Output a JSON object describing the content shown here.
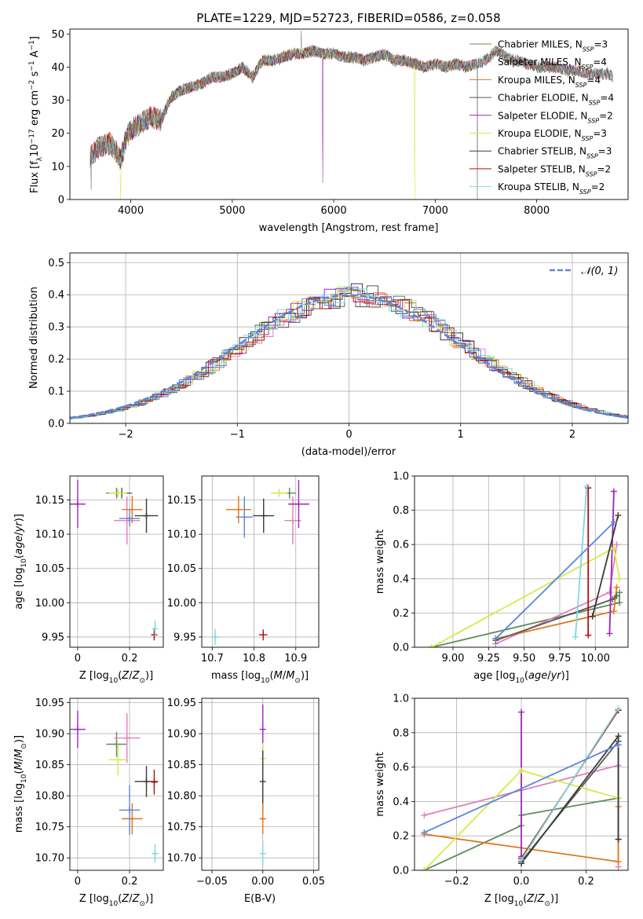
{
  "colors": {
    "Chabrier MILES": "#5f8c5f",
    "Salpeter MILES": "#e27fbf",
    "Kroupa MILES": "#e0761a",
    "Chabrier ELODIE": "#5a5a5a",
    "Salpeter ELODIE": "#9d26b8",
    "Kroupa ELODIE": "#d4ea4a",
    "Chabrier STELIB": "#3a3a3a",
    "Salpeter STELIB": "#b01010",
    "Kroupa STELIB": "#7fd9e0",
    "blue": "#5b86d9"
  },
  "chart_data": [
    {
      "id": "spectrum",
      "type": "line",
      "title": "PLATE=1229, MJD=52723, FIBERID=0586, z=0.058",
      "xlabel": "wavelength [Angstrom, rest frame]",
      "ylabel_parts": [
        "Flux [f",
        "λ",
        "10",
        "−17",
        " erg cm",
        "−2",
        " s",
        "−1",
        " A",
        "−1",
        "]"
      ],
      "xlim": [
        3400,
        8900
      ],
      "ylim": [
        0,
        51.5
      ],
      "xticks": [
        4000,
        5000,
        6000,
        7000,
        8000
      ],
      "yticks": [
        0,
        10,
        20,
        30,
        40,
        50
      ],
      "continuum_x": [
        3600,
        3700,
        3800,
        3900,
        3950,
        4000,
        4100,
        4200,
        4300,
        4400,
        4500,
        4600,
        4700,
        4800,
        4900,
        5000,
        5100,
        5200,
        5300,
        5400,
        5500,
        5600,
        5700,
        5800,
        5900,
        6000,
        6100,
        6200,
        6300,
        6400,
        6500,
        6600,
        6700,
        6800,
        6900,
        7000,
        7100,
        7200,
        7300,
        7400,
        7500,
        7600,
        7700,
        7800,
        7900,
        8000,
        8100,
        8200,
        8300,
        8400,
        8500,
        8600,
        8700,
        8750
      ],
      "continuum_y": [
        13,
        16,
        17,
        12,
        18,
        21,
        23,
        25,
        24,
        31,
        33,
        34,
        35,
        37,
        37,
        38,
        40,
        37,
        42,
        42,
        43,
        44,
        44,
        45,
        44,
        44,
        43,
        43,
        42,
        43,
        44,
        42,
        42,
        41,
        40,
        41,
        40,
        41,
        40,
        41,
        42,
        45,
        43,
        42,
        41,
        40,
        40,
        40,
        39,
        39,
        38,
        38,
        38,
        37
      ],
      "models": [
        {
          "name": "Chabrier MILES",
          "nssp": "3"
        },
        {
          "name": "Salpeter MILES",
          "nssp": "4"
        },
        {
          "name": "Kroupa MILES",
          "nssp": "4"
        },
        {
          "name": "Chabrier ELODIE",
          "nssp": "4"
        },
        {
          "name": "Salpeter ELODIE",
          "nssp": "2"
        },
        {
          "name": "Kroupa ELODIE",
          "nssp": "3"
        },
        {
          "name": "Chabrier STELIB",
          "nssp": "3"
        },
        {
          "name": "Salpeter STELIB",
          "nssp": "2"
        },
        {
          "name": "Kroupa STELIB",
          "nssp": "2"
        }
      ],
      "legend_position": "upper right"
    },
    {
      "id": "residuals",
      "type": "line",
      "xlabel": "(data-model)/error",
      "ylabel": "Normed distribution",
      "xlim": [
        -2.5,
        2.5
      ],
      "ylim": [
        0,
        0.53
      ],
      "xticks": [
        -2,
        -1,
        0,
        1,
        2
      ],
      "yticks": [
        0.0,
        0.1,
        0.2,
        0.3,
        0.4,
        0.5
      ],
      "grid": true,
      "reference_label": "𝒩(0, 1)",
      "legend_position": "upper right"
    },
    {
      "id": "age_vs_Z",
      "type": "scatter",
      "xlabel": "Z [log10(Z/Z⊙)]",
      "ylabel": "age  [log10(age/yr)]",
      "xlim": [
        -0.03,
        0.33
      ],
      "ylim": [
        9.935,
        10.185
      ],
      "xticks": [
        0.0,
        0.2
      ],
      "yticks": [
        9.95,
        10.0,
        10.05,
        10.1,
        10.15
      ],
      "grid": true,
      "points": [
        {
          "model": "Chabrier MILES",
          "x": 0.15,
          "y": 10.16,
          "xerr": 0.04,
          "yerr": 0.008
        },
        {
          "model": "Salpeter MILES",
          "x": 0.19,
          "y": 10.12,
          "xerr": 0.05,
          "yerr": 0.035
        },
        {
          "model": "Kroupa MILES",
          "x": 0.21,
          "y": 10.136,
          "xerr": 0.04,
          "yerr": 0.02
        },
        {
          "model": "Chabrier ELODIE",
          "x": 0.17,
          "y": 10.16,
          "xerr": 0.04,
          "yerr": 0.008
        },
        {
          "model": "Salpeter ELODIE",
          "x": 0.0,
          "y": 10.144,
          "xerr": 0.03,
          "yerr": 0.035
        },
        {
          "model": "Kroupa ELODIE",
          "x": 0.155,
          "y": 10.16,
          "xerr": 0.035,
          "yerr": 0.006
        },
        {
          "model": "Chabrier STELIB",
          "x": 0.265,
          "y": 10.127,
          "xerr": 0.045,
          "yerr": 0.025
        },
        {
          "model": "Salpeter STELIB",
          "x": 0.295,
          "y": 9.953,
          "xerr": 0.01,
          "yerr": 0.008
        },
        {
          "model": "Kroupa STELIB",
          "x": 0.298,
          "y": 9.962,
          "xerr": 0.005,
          "yerr": 0.012
        },
        {
          "model": "blue",
          "x": 0.2,
          "y": 10.123,
          "xerr": 0.04,
          "yerr": 0.012
        }
      ]
    },
    {
      "id": "age_vs_mass",
      "type": "scatter",
      "xlabel": "mass [log10(M/M⊙)]",
      "ylabel": "",
      "xlim": [
        10.675,
        10.955
      ],
      "ylim": [
        9.935,
        10.185
      ],
      "xticks": [
        10.7,
        10.8,
        10.9
      ],
      "yticks": [
        9.95,
        10.0,
        10.05,
        10.1,
        10.15
      ],
      "grid": true,
      "points": [
        {
          "model": "Chabrier MILES",
          "x": 10.885,
          "y": 10.16,
          "xerr": 0.015,
          "yerr": 0.008
        },
        {
          "model": "Salpeter MILES",
          "x": 10.893,
          "y": 10.12,
          "xerr": 0.02,
          "yerr": 0.035
        },
        {
          "model": "Kroupa MILES",
          "x": 10.763,
          "y": 10.136,
          "xerr": 0.03,
          "yerr": 0.02
        },
        {
          "model": "Salpeter ELODIE",
          "x": 10.907,
          "y": 10.144,
          "xerr": 0.025,
          "yerr": 0.035
        },
        {
          "model": "Kroupa ELODIE",
          "x": 10.86,
          "y": 10.16,
          "xerr": 0.02,
          "yerr": 0.006
        },
        {
          "model": "Chabrier STELIB",
          "x": 10.823,
          "y": 10.127,
          "xerr": 0.025,
          "yerr": 0.025
        },
        {
          "model": "Salpeter STELIB",
          "x": 10.822,
          "y": 9.953,
          "xerr": 0.01,
          "yerr": 0.008
        },
        {
          "model": "Kroupa STELIB",
          "x": 10.707,
          "y": 9.95,
          "xerr": 0.008,
          "yerr": 0.012
        },
        {
          "model": "blue",
          "x": 10.777,
          "y": 10.125,
          "xerr": 0.02,
          "yerr": 0.03
        }
      ]
    },
    {
      "id": "weights_vs_age",
      "type": "line",
      "xlabel": "age  [log10(age/yr)]",
      "ylabel": "mass weight",
      "xlim": [
        8.73,
        10.23
      ],
      "ylim": [
        0,
        1
      ],
      "xticks": [
        9.0,
        9.25,
        9.5,
        9.75,
        10.0
      ],
      "xticklabels": [
        "9.00",
        "9.25",
        "9.50",
        "9.75",
        "10.00"
      ],
      "yticks": [
        0.0,
        0.2,
        0.4,
        0.6,
        0.8,
        1.0
      ],
      "grid": true,
      "series": [
        {
          "model": "Chabrier MILES",
          "x": [
            8.85,
            10.17,
            10.17
          ],
          "y": [
            0.0,
            0.26,
            0.32
          ]
        },
        {
          "model": "Salpeter MILES",
          "x": [
            9.3,
            10.1,
            10.15
          ],
          "y": [
            0.02,
            0.32,
            0.6
          ]
        },
        {
          "model": "Kroupa MILES",
          "x": [
            9.3,
            10.13,
            10.15
          ],
          "y": [
            0.05,
            0.21,
            0.35
          ]
        },
        {
          "model": "Chabrier ELODIE",
          "x": [
            9.3,
            10.12,
            10.15
          ],
          "y": [
            0.04,
            0.28,
            0.3
          ]
        },
        {
          "model": "Salpeter ELODIE",
          "x": [
            10.1,
            10.13
          ],
          "y": [
            0.08,
            0.91
          ]
        },
        {
          "model": "Kroupa ELODIE",
          "x": [
            8.85,
            10.13,
            10.17
          ],
          "y": [
            0.0,
            0.58,
            0.4
          ]
        },
        {
          "model": "Chabrier STELIB",
          "x": [
            9.98,
            10.16
          ],
          "y": [
            0.18,
            0.77
          ]
        },
        {
          "model": "Salpeter STELIB",
          "x": [
            9.95,
            9.95
          ],
          "y": [
            0.07,
            0.93
          ]
        },
        {
          "model": "Kroupa STELIB",
          "x": [
            9.86,
            9.94
          ],
          "y": [
            0.06,
            0.94
          ]
        },
        {
          "model": "blue",
          "x": [
            9.3,
            10.13
          ],
          "y": [
            0.05,
            0.73
          ]
        }
      ]
    },
    {
      "id": "mass_vs_Z",
      "type": "scatter",
      "xlabel": "Z [log10(Z/Z⊙)]",
      "ylabel": "mass [log10(M/M⊙)]",
      "xlim": [
        -0.03,
        0.33
      ],
      "ylim": [
        10.68,
        10.957
      ],
      "xticks": [
        0.0,
        0.2
      ],
      "yticks": [
        10.7,
        10.75,
        10.8,
        10.85,
        10.9,
        10.95
      ],
      "grid": true,
      "points": [
        {
          "model": "Chabrier MILES",
          "x": 0.15,
          "y": 10.883,
          "xerr": 0.04,
          "yerr": 0.02
        },
        {
          "model": "Salpeter MILES",
          "x": 0.19,
          "y": 10.893,
          "xerr": 0.05,
          "yerr": 0.04
        },
        {
          "model": "Kroupa MILES",
          "x": 0.21,
          "y": 10.763,
          "xerr": 0.04,
          "yerr": 0.025
        },
        {
          "model": "Salpeter ELODIE",
          "x": 0.0,
          "y": 10.907,
          "xerr": 0.03,
          "yerr": 0.03
        },
        {
          "model": "Kroupa ELODIE",
          "x": 0.155,
          "y": 10.858,
          "xerr": 0.035,
          "yerr": 0.025
        },
        {
          "model": "Chabrier STELIB",
          "x": 0.265,
          "y": 10.823,
          "xerr": 0.045,
          "yerr": 0.025
        },
        {
          "model": "Salpeter STELIB",
          "x": 0.295,
          "y": 10.822,
          "xerr": 0.01,
          "yerr": 0.02
        },
        {
          "model": "Kroupa STELIB",
          "x": 0.298,
          "y": 10.707,
          "xerr": 0.01,
          "yerr": 0.015
        },
        {
          "model": "blue",
          "x": 0.2,
          "y": 10.777,
          "xerr": 0.04,
          "yerr": 0.04
        }
      ]
    },
    {
      "id": "mass_vs_EBV",
      "type": "scatter",
      "xlabel": "E(B-V)",
      "ylabel": "",
      "xlim": [
        -0.06,
        0.055
      ],
      "ylim": [
        10.68,
        10.957
      ],
      "xticks": [
        -0.05,
        0.0,
        0.05
      ],
      "xticklabels": [
        "−0.05",
        "0.00",
        "0.05"
      ],
      "yticks": [
        10.7,
        10.75,
        10.8,
        10.85,
        10.9,
        10.95
      ],
      "grid": true,
      "points": [
        {
          "model": "Salpeter ELODIE",
          "x": 0.0,
          "y": 10.907,
          "xerr": 0,
          "yerr": 0.04
        },
        {
          "model": "Kroupa ELODIE",
          "x": 0.0,
          "y": 10.86,
          "xerr": 0,
          "yerr": 0.025
        },
        {
          "model": "Chabrier STELIB",
          "x": 0.0,
          "y": 10.823,
          "xerr": 0,
          "yerr": 0.05
        },
        {
          "model": "Kroupa MILES",
          "x": 0.0,
          "y": 10.763,
          "xerr": 0,
          "yerr": 0.025
        },
        {
          "model": "Kroupa STELIB",
          "x": 0.0,
          "y": 10.707,
          "xerr": 0,
          "yerr": 0.02
        }
      ]
    },
    {
      "id": "weights_vs_Z",
      "type": "line",
      "xlabel": "Z [log10(Z/Z⊙)]",
      "ylabel": "mass weight",
      "xlim": [
        -0.33,
        0.33
      ],
      "ylim": [
        0,
        1
      ],
      "xticks": [
        -0.2,
        0.0,
        0.2
      ],
      "xticklabels": [
        "−0.2",
        "0.0",
        "0.2"
      ],
      "yticks": [
        0.0,
        0.2,
        0.4,
        0.6,
        0.8,
        1.0
      ],
      "grid": true,
      "series": [
        {
          "model": "Chabrier MILES",
          "x": [
            -0.3,
            0.0,
            0.0,
            0.3
          ],
          "y": [
            0.0,
            0.26,
            0.32,
            0.42
          ]
        },
        {
          "model": "Salpeter MILES",
          "x": [
            -0.3,
            0.3,
            0.3
          ],
          "y": [
            0.32,
            0.61,
            0.02
          ]
        },
        {
          "model": "Kroupa MILES",
          "x": [
            -0.3,
            0.3,
            0.3
          ],
          "y": [
            0.21,
            0.05,
            0.37
          ]
        },
        {
          "model": "Chabrier ELODIE",
          "x": [
            0.0,
            0.3,
            0.3
          ],
          "y": [
            0.05,
            0.75,
            0.18
          ]
        },
        {
          "model": "Salpeter ELODIE",
          "x": [
            0.0,
            0.0
          ],
          "y": [
            0.08,
            0.92
          ]
        },
        {
          "model": "Kroupa ELODIE",
          "x": [
            -0.3,
            0.0,
            0.3
          ],
          "y": [
            0.0,
            0.58,
            0.42
          ]
        },
        {
          "model": "Chabrier STELIB",
          "x": [
            0.0,
            0.3,
            0.3
          ],
          "y": [
            0.04,
            0.78,
            0.18
          ]
        },
        {
          "model": "Salpeter STELIB",
          "x": [
            0.0,
            0.3
          ],
          "y": [
            0.07,
            0.93
          ]
        },
        {
          "model": "Kroupa STELIB",
          "x": [
            0.0,
            0.3
          ],
          "y": [
            0.06,
            0.94
          ]
        },
        {
          "model": "blue",
          "x": [
            -0.3,
            0.3
          ],
          "y": [
            0.22,
            0.73
          ]
        }
      ]
    }
  ]
}
